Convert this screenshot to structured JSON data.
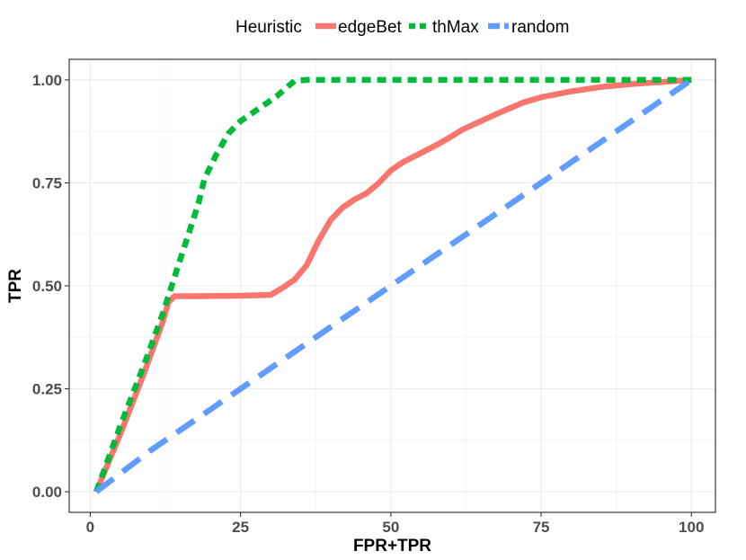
{
  "chart_data": {
    "type": "line",
    "xlabel": "FPR+TPR",
    "ylabel": "TPR",
    "xlim": [
      -3.5,
      104
    ],
    "ylim": [
      -0.05,
      1.05
    ],
    "x_ticks": [
      0,
      25,
      50,
      75,
      100
    ],
    "x_tick_labels": [
      "0",
      "25",
      "50",
      "75",
      "100"
    ],
    "y_ticks": [
      0,
      0.25,
      0.5,
      0.75,
      1.0
    ],
    "y_tick_labels": [
      "0.00",
      "0.25",
      "0.50",
      "0.75",
      "1.00"
    ],
    "grid": true,
    "legend_title": "Heuristic",
    "legend_position": "top",
    "series": [
      {
        "name": "edgeBet",
        "color": "#f8766d",
        "dash": "solid",
        "points": [
          [
            1,
            0
          ],
          [
            5,
            0.14
          ],
          [
            9,
            0.29
          ],
          [
            12,
            0.41
          ],
          [
            13,
            0.46
          ],
          [
            14,
            0.475
          ],
          [
            18,
            0.475
          ],
          [
            25,
            0.476
          ],
          [
            30,
            0.478
          ],
          [
            32,
            0.495
          ],
          [
            34,
            0.515
          ],
          [
            36,
            0.55
          ],
          [
            38,
            0.61
          ],
          [
            40,
            0.66
          ],
          [
            42,
            0.69
          ],
          [
            44,
            0.71
          ],
          [
            46,
            0.725
          ],
          [
            48,
            0.75
          ],
          [
            50,
            0.78
          ],
          [
            52,
            0.8
          ],
          [
            54,
            0.815
          ],
          [
            56,
            0.83
          ],
          [
            58,
            0.845
          ],
          [
            60,
            0.862
          ],
          [
            62,
            0.88
          ],
          [
            65,
            0.9
          ],
          [
            68,
            0.92
          ],
          [
            72,
            0.945
          ],
          [
            75,
            0.958
          ],
          [
            80,
            0.972
          ],
          [
            85,
            0.983
          ],
          [
            90,
            0.99
          ],
          [
            95,
            0.995
          ],
          [
            100,
            1.0
          ]
        ]
      },
      {
        "name": "thMax",
        "color": "#00ba38",
        "dash": "dotted",
        "points": [
          [
            1,
            0
          ],
          [
            5,
            0.16
          ],
          [
            9,
            0.31
          ],
          [
            12,
            0.43
          ],
          [
            14,
            0.52
          ],
          [
            16,
            0.61
          ],
          [
            18,
            0.7
          ],
          [
            19,
            0.76
          ],
          [
            21,
            0.82
          ],
          [
            23,
            0.87
          ],
          [
            25,
            0.9
          ],
          [
            28,
            0.93
          ],
          [
            31,
            0.96
          ],
          [
            34,
            0.998
          ],
          [
            36,
            1.0
          ],
          [
            100,
            1.0
          ]
        ]
      },
      {
        "name": "random",
        "color": "#619cff",
        "dash": "dashed",
        "points": [
          [
            1,
            0
          ],
          [
            10,
            0.1
          ],
          [
            20,
            0.2
          ],
          [
            30,
            0.3
          ],
          [
            40,
            0.4
          ],
          [
            50,
            0.5
          ],
          [
            60,
            0.6
          ],
          [
            70,
            0.7
          ],
          [
            80,
            0.8
          ],
          [
            90,
            0.9
          ],
          [
            100,
            1.0
          ]
        ]
      }
    ]
  }
}
